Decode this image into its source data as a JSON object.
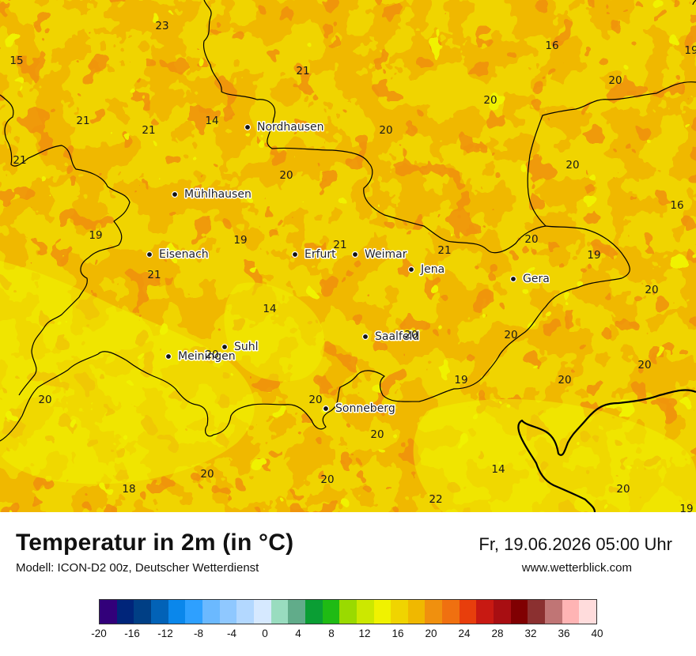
{
  "map": {
    "cities": [
      {
        "name": "Nordhausen"
      },
      {
        "name": "Mühlhausen"
      },
      {
        "name": "Eisenach"
      },
      {
        "name": "Erfurt"
      },
      {
        "name": "Weimar"
      },
      {
        "name": "Jena"
      },
      {
        "name": "Gera"
      },
      {
        "name": "Saalfeld"
      },
      {
        "name": "Suhl"
      },
      {
        "name": "Meiningen"
      },
      {
        "name": "Sonneberg"
      }
    ],
    "values": [
      "23",
      "15",
      "21",
      "21",
      "21",
      "14",
      "20",
      "16",
      "20",
      "20",
      "19",
      "21",
      "20",
      "20",
      "16",
      "19",
      "19",
      "21",
      "21",
      "20",
      "19",
      "21",
      "14",
      "20",
      "20",
      "20",
      "20",
      "20",
      "19",
      "20",
      "20",
      "20",
      "20",
      "18",
      "20",
      "20",
      "14",
      "22",
      "20",
      "19"
    ]
  },
  "footer": {
    "title": "Temperatur in 2m (in °C)",
    "subtitle": "Modell: ICON-D2 00z, Deutscher Wetterdienst",
    "datetime": "Fr, 19.06.2026 05:00 Uhr",
    "website": "www.wetterblick.com"
  },
  "legend": {
    "colors": [
      "#32007a",
      "#00257a",
      "#003f85",
      "#0262b7",
      "#0a87eb",
      "#2ea0ff",
      "#6bb9ff",
      "#8fc8ff",
      "#b3d8ff",
      "#d6e9ff",
      "#99dcbf",
      "#61ac8a",
      "#0a9e34",
      "#1fbb14",
      "#9ada00",
      "#cce800",
      "#f0f200",
      "#f0d400",
      "#f0b800",
      "#f0900e",
      "#f07010",
      "#e83e0c",
      "#c81912",
      "#a80e12",
      "#800002",
      "#8b3030",
      "#c07575",
      "#ffb4b4",
      "#ffdcdc"
    ],
    "ticks": [
      "-20",
      "-16",
      "-12",
      "-8",
      "-4",
      "0",
      "4",
      "8",
      "12",
      "16",
      "20",
      "24",
      "28",
      "32",
      "36",
      "40"
    ]
  }
}
